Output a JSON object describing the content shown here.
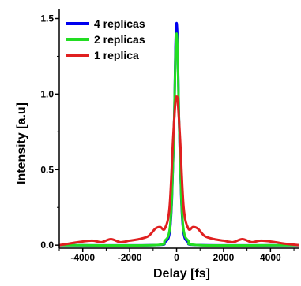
{
  "chart_data": {
    "type": "line",
    "xlabel": "Delay  [fs]",
    "ylabel": "Intensity  [a.u]",
    "xlim": [
      -5000,
      5200
    ],
    "ylim": [
      -0.02,
      1.56
    ],
    "x_ticks": [
      -4000,
      -2000,
      0,
      2000,
      4000
    ],
    "x_tick_labels": [
      "-4000",
      "-2000",
      "0",
      "2000",
      "4000"
    ],
    "y_ticks": [
      0.0,
      0.5,
      1.0,
      1.5
    ],
    "y_tick_labels": [
      "0.0",
      "0.5",
      "1.0",
      "1.5"
    ],
    "grid": false,
    "legend_position": "top-left",
    "series": [
      {
        "name": "4 replicas",
        "color": "#0000ee",
        "x": [
          -5000,
          -1000,
          -500,
          -300,
          -200,
          -100,
          -50,
          0,
          50,
          100,
          200,
          300,
          500,
          1000,
          5200
        ],
        "y": [
          0.0,
          0.0,
          0.02,
          0.08,
          0.3,
          0.85,
          1.3,
          1.47,
          1.3,
          0.85,
          0.3,
          0.08,
          0.02,
          0.0,
          0.0
        ]
      },
      {
        "name": "2 replicas",
        "color": "#22dd22",
        "x": [
          -5000,
          -1000,
          -500,
          -300,
          -200,
          -100,
          -50,
          0,
          50,
          100,
          200,
          300,
          500,
          1000,
          5200
        ],
        "y": [
          0.0,
          0.0,
          0.03,
          0.1,
          0.32,
          0.85,
          1.25,
          1.4,
          1.25,
          0.85,
          0.32,
          0.1,
          0.03,
          0.0,
          0.0
        ]
      },
      {
        "name": "1 replica",
        "color": "#e02020",
        "x": [
          -5000,
          -4600,
          -4200,
          -3600,
          -3200,
          -2800,
          -2400,
          -2000,
          -1600,
          -1200,
          -900,
          -700,
          -500,
          -300,
          -150,
          -50,
          0,
          50,
          150,
          300,
          500,
          700,
          900,
          1200,
          1600,
          2000,
          2400,
          2800,
          3200,
          3600,
          4200,
          4600,
          5200
        ],
        "y": [
          0.0,
          0.01,
          0.02,
          0.03,
          0.02,
          0.04,
          0.02,
          0.03,
          0.04,
          0.06,
          0.11,
          0.12,
          0.11,
          0.25,
          0.7,
          0.95,
          0.98,
          0.95,
          0.7,
          0.25,
          0.11,
          0.12,
          0.11,
          0.06,
          0.04,
          0.03,
          0.02,
          0.04,
          0.02,
          0.03,
          0.02,
          0.01,
          0.0
        ]
      }
    ]
  }
}
